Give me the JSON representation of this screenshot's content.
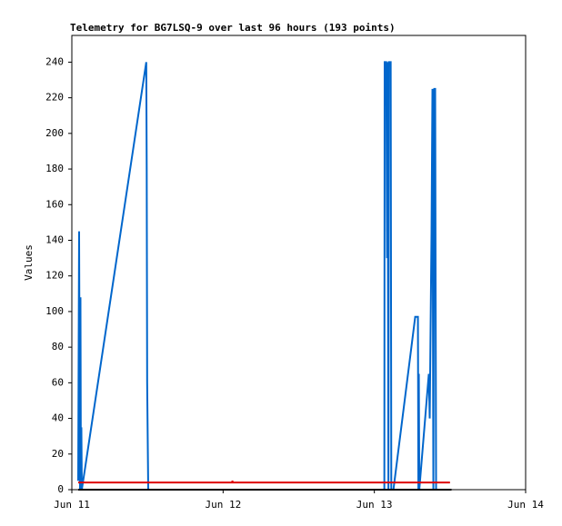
{
  "chart_data": {
    "type": "line",
    "title": "Telemetry for BG7LSQ-9 over last 96 hours (193 points)",
    "y_label": "Values",
    "xlim": [
      11,
      14
    ],
    "xticks": [
      {
        "value": 11,
        "label": "Jun 11"
      },
      {
        "value": 12,
        "label": "Jun 12"
      },
      {
        "value": 13,
        "label": "Jun 13"
      },
      {
        "value": 14,
        "label": "Jun 14"
      }
    ],
    "ylim": [
      0,
      255
    ],
    "yticks": [
      0,
      20,
      40,
      60,
      80,
      100,
      120,
      140,
      160,
      180,
      200,
      220,
      240
    ],
    "grid": false,
    "series": [
      {
        "color": "#0066cc",
        "x": [
          11.042,
          11.048,
          11.054,
          11.057,
          11.06,
          11.063,
          11.066,
          11.492,
          11.495,
          11.498,
          11.505,
          13.066,
          13.068,
          13.078,
          13.08,
          13.084,
          13.088,
          13.09,
          13.093,
          13.096,
          13.108,
          13.112,
          13.126,
          13.27,
          13.288,
          13.291,
          13.294,
          13.297,
          13.36,
          13.366,
          13.378,
          13.384,
          13.39,
          13.396,
          13.402,
          13.408
        ],
        "values": [
          5,
          145,
          0,
          108,
          0,
          35,
          0,
          240,
          180,
          60,
          0,
          0,
          240,
          240,
          215,
          130,
          240,
          120,
          0,
          240,
          240,
          0,
          0,
          97,
          97,
          0,
          65,
          0,
          65,
          40,
          145,
          225,
          0,
          225,
          225,
          0
        ]
      },
      {
        "color": "#dd0000",
        "x": [
          11.042,
          12.06,
          12.061,
          12.065,
          13.5
        ],
        "values": [
          4,
          4,
          5,
          4,
          4
        ]
      },
      {
        "color": "#000000",
        "x": [
          11.042,
          13.51
        ],
        "values": [
          0,
          0
        ]
      }
    ]
  }
}
